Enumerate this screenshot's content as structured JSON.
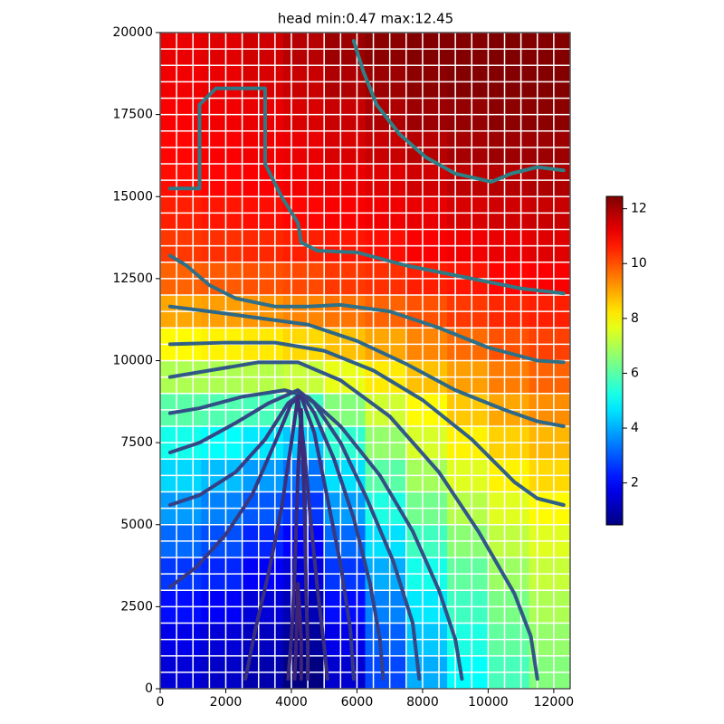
{
  "chart_data": {
    "type": "heatmap",
    "title": "head min:0.47 max:12.45",
    "xlim": [
      0,
      12500
    ],
    "ylim": [
      0,
      20000
    ],
    "xticks": [
      0,
      2000,
      4000,
      6000,
      8000,
      10000,
      12000
    ],
    "yticks": [
      0,
      2500,
      5000,
      7500,
      10000,
      12500,
      15000,
      17500,
      20000
    ],
    "clim": [
      0.47,
      12.45
    ],
    "cticks": [
      2,
      4,
      6,
      8,
      10,
      12
    ],
    "colormap": "jet",
    "x_edges": [
      0,
      1250,
      2500,
      3750,
      5000,
      6250,
      7500,
      8750,
      10000,
      11250,
      12500
    ],
    "y_edges": [
      20000,
      19000,
      18000,
      17000,
      16000,
      15000,
      14000,
      13000,
      12000,
      11000,
      10000,
      9000,
      8000,
      7000,
      6000,
      5000,
      4000,
      3000,
      2000,
      1000,
      0
    ],
    "values": [
      [
        11.2,
        11.3,
        11.5,
        11.8,
        12.1,
        12.3,
        12.4,
        12.4,
        12.45,
        12.4
      ],
      [
        11.1,
        11.2,
        11.4,
        11.6,
        11.9,
        12.1,
        12.3,
        12.4,
        12.4,
        12.4
      ],
      [
        11.0,
        11.1,
        11.2,
        11.4,
        11.6,
        11.9,
        12.1,
        12.2,
        12.3,
        12.3
      ],
      [
        10.9,
        11.0,
        11.1,
        11.2,
        11.4,
        11.6,
        11.8,
        12.0,
        12.1,
        12.1
      ],
      [
        10.8,
        10.9,
        11.0,
        11.1,
        11.2,
        11.3,
        11.5,
        11.7,
        11.8,
        11.9
      ],
      [
        10.6,
        10.7,
        10.8,
        10.9,
        11.0,
        11.1,
        11.2,
        11.4,
        11.5,
        11.6
      ],
      [
        10.3,
        10.4,
        10.5,
        10.6,
        10.7,
        10.8,
        11.0,
        11.1,
        11.2,
        11.3
      ],
      [
        9.8,
        9.9,
        10.0,
        10.1,
        10.3,
        10.4,
        10.6,
        10.7,
        10.9,
        11.0
      ],
      [
        9.0,
        9.1,
        9.2,
        9.4,
        9.6,
        9.8,
        10.0,
        10.3,
        10.5,
        10.6
      ],
      [
        8.0,
        8.1,
        8.2,
        8.4,
        8.7,
        9.0,
        9.4,
        9.7,
        10.0,
        10.2
      ],
      [
        7.0,
        7.0,
        7.1,
        7.3,
        7.7,
        8.2,
        8.7,
        9.1,
        9.5,
        9.8
      ],
      [
        6.0,
        5.9,
        5.8,
        5.7,
        6.5,
        7.4,
        8.0,
        8.6,
        9.0,
        9.3
      ],
      [
        5.2,
        5.0,
        4.7,
        4.3,
        5.5,
        6.7,
        7.5,
        8.1,
        8.5,
        8.8
      ],
      [
        4.5,
        4.2,
        3.8,
        3.3,
        4.6,
        6.0,
        6.9,
        7.6,
        8.1,
        8.4
      ],
      [
        3.8,
        3.5,
        3.0,
        2.6,
        3.8,
        5.3,
        6.3,
        7.1,
        7.6,
        8.0
      ],
      [
        3.2,
        2.9,
        2.4,
        2.0,
        3.2,
        4.6,
        5.7,
        6.6,
        7.2,
        7.6
      ],
      [
        2.6,
        2.4,
        1.9,
        1.5,
        2.6,
        4.0,
        5.2,
        6.1,
        6.8,
        7.3
      ],
      [
        2.1,
        1.9,
        1.5,
        1.1,
        2.1,
        3.5,
        4.7,
        5.7,
        6.4,
        7.0
      ],
      [
        1.7,
        1.5,
        1.2,
        0.8,
        1.7,
        3.1,
        4.3,
        5.3,
        6.1,
        6.7
      ],
      [
        1.5,
        1.3,
        1.0,
        0.47,
        1.4,
        2.8,
        4.0,
        5.0,
        5.8,
        6.5
      ]
    ],
    "contours": [
      {
        "color": "#2f7f86",
        "points": [
          [
            5900,
            19750
          ],
          [
            6200,
            18800
          ],
          [
            6600,
            17800
          ],
          [
            7300,
            16900
          ],
          [
            8100,
            16200
          ],
          [
            9000,
            15700
          ],
          [
            10100,
            15450
          ],
          [
            10700,
            15700
          ],
          [
            11500,
            15900
          ],
          [
            12300,
            15800
          ]
        ]
      },
      {
        "color": "#2f7a86",
        "points": [
          [
            300,
            15250
          ],
          [
            1200,
            15250
          ],
          [
            1200,
            17800
          ],
          [
            1700,
            18300
          ],
          [
            3200,
            18300
          ],
          [
            3200,
            16000
          ],
          [
            3700,
            15000
          ],
          [
            4200,
            14200
          ],
          [
            4300,
            13600
          ],
          [
            4800,
            13350
          ],
          [
            6000,
            13300
          ],
          [
            7500,
            12900
          ],
          [
            9000,
            12600
          ],
          [
            11000,
            12200
          ],
          [
            12300,
            12050
          ]
        ]
      },
      {
        "color": "#2f7086",
        "points": [
          [
            300,
            13200
          ],
          [
            800,
            12900
          ],
          [
            1500,
            12300
          ],
          [
            2300,
            11900
          ],
          [
            3500,
            11650
          ],
          [
            4500,
            11650
          ],
          [
            5500,
            11700
          ],
          [
            7000,
            11500
          ],
          [
            8500,
            11000
          ],
          [
            10000,
            10400
          ],
          [
            11500,
            10000
          ],
          [
            12300,
            9950
          ]
        ]
      },
      {
        "color": "#2f6886",
        "points": [
          [
            300,
            11650
          ],
          [
            1500,
            11500
          ],
          [
            3000,
            11300
          ],
          [
            4500,
            11100
          ],
          [
            6000,
            10600
          ],
          [
            7500,
            9900
          ],
          [
            9000,
            9100
          ],
          [
            10500,
            8500
          ],
          [
            11500,
            8150
          ],
          [
            12300,
            8000
          ]
        ]
      },
      {
        "color": "#306086",
        "points": [
          [
            300,
            10500
          ],
          [
            2000,
            10550
          ],
          [
            3500,
            10550
          ],
          [
            5000,
            10300
          ],
          [
            6500,
            9700
          ],
          [
            8000,
            8800
          ],
          [
            9500,
            7600
          ],
          [
            10800,
            6300
          ],
          [
            11500,
            5800
          ],
          [
            12300,
            5600
          ]
        ]
      },
      {
        "color": "#315886",
        "points": [
          [
            300,
            9500
          ],
          [
            1500,
            9700
          ],
          [
            3000,
            9950
          ],
          [
            4200,
            9950
          ],
          [
            5500,
            9400
          ],
          [
            7000,
            8300
          ],
          [
            8500,
            6600
          ],
          [
            9700,
            4800
          ],
          [
            10800,
            2900
          ],
          [
            11300,
            1600
          ],
          [
            11500,
            300
          ]
        ]
      },
      {
        "color": "#325086",
        "points": [
          [
            300,
            8400
          ],
          [
            1200,
            8550
          ],
          [
            2500,
            8900
          ],
          [
            3800,
            9100
          ],
          [
            4500,
            8900
          ],
          [
            5500,
            8000
          ],
          [
            6700,
            6500
          ],
          [
            7700,
            4800
          ],
          [
            8500,
            3000
          ],
          [
            9000,
            1500
          ],
          [
            9200,
            300
          ]
        ]
      },
      {
        "color": "#344886",
        "points": [
          [
            300,
            7200
          ],
          [
            1200,
            7500
          ],
          [
            2300,
            8100
          ],
          [
            3300,
            8700
          ],
          [
            4200,
            9100
          ],
          [
            4700,
            8700
          ],
          [
            5500,
            7500
          ],
          [
            6300,
            5800
          ],
          [
            7100,
            3900
          ],
          [
            7700,
            2000
          ],
          [
            7900,
            300
          ]
        ]
      },
      {
        "color": "#364084",
        "points": [
          [
            300,
            5600
          ],
          [
            1200,
            5900
          ],
          [
            2300,
            6600
          ],
          [
            3200,
            7600
          ],
          [
            3900,
            8700
          ],
          [
            4300,
            9000
          ],
          [
            4700,
            8400
          ],
          [
            5300,
            7000
          ],
          [
            5900,
            5200
          ],
          [
            6400,
            3200
          ],
          [
            6700,
            1500
          ],
          [
            6800,
            300
          ]
        ]
      },
      {
        "color": "#383882",
        "points": [
          [
            300,
            3100
          ],
          [
            1100,
            3700
          ],
          [
            2000,
            4700
          ],
          [
            2800,
            5900
          ],
          [
            3500,
            7500
          ],
          [
            4000,
            8700
          ],
          [
            4300,
            8900
          ],
          [
            4700,
            7800
          ],
          [
            5100,
            5800
          ],
          [
            5500,
            3800
          ],
          [
            5800,
            1800
          ],
          [
            5900,
            300
          ]
        ]
      },
      {
        "color": "#3a307e",
        "points": [
          [
            2600,
            300
          ],
          [
            2900,
            1800
          ],
          [
            3300,
            3500
          ],
          [
            3700,
            5500
          ],
          [
            4000,
            7500
          ],
          [
            4200,
            8900
          ],
          [
            4400,
            7200
          ],
          [
            4600,
            5000
          ],
          [
            4800,
            3000
          ],
          [
            5000,
            1300
          ],
          [
            5100,
            300
          ]
        ]
      },
      {
        "color": "#3c2a7a",
        "points": [
          [
            3900,
            300
          ],
          [
            4000,
            1500
          ],
          [
            4100,
            3500
          ],
          [
            4200,
            6500
          ],
          [
            4300,
            8500
          ],
          [
            4400,
            5500
          ],
          [
            4450,
            3000
          ],
          [
            4500,
            1300
          ],
          [
            4500,
            300
          ]
        ]
      },
      {
        "color": "#3e2476",
        "points": [
          [
            4100,
            300
          ],
          [
            4150,
            1500
          ],
          [
            4200,
            3200
          ],
          [
            4300,
            1500
          ],
          [
            4300,
            300
          ]
        ]
      }
    ]
  }
}
